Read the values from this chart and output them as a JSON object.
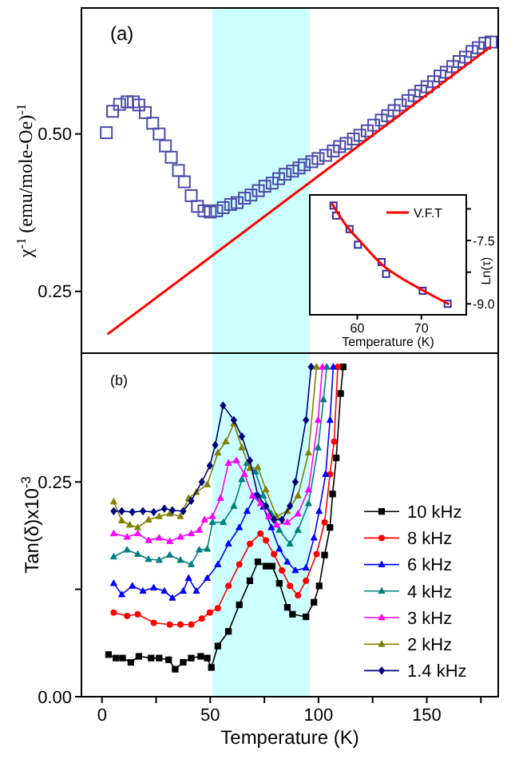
{
  "chart_data": [
    {
      "type": "scatter",
      "ylabel": "χ$^{-1}$ (emu/mole-Oe)$^{-1}$",
      "annotations": [
        "(a)"
      ],
      "xlim": [
        -9.5,
        183
      ],
      "ylim": [
        0.152,
        0.7
      ],
      "tick_labels": "y",
      "grid": false,
      "legend": false,
      "xticks": [
        {
          "value": 0,
          "label": null
        },
        {
          "value": 25,
          "label": null
        },
        {
          "value": 50,
          "label": null
        },
        {
          "value": 75,
          "label": null
        },
        {
          "value": 100,
          "label": null
        },
        {
          "value": 125,
          "label": null
        },
        {
          "value": 150,
          "label": null
        },
        {
          "value": 175,
          "label": null
        }
      ],
      "yticks": [
        0.25,
        {
          "value": 0.5,
          "label": "0.50"
        }
      ],
      "bands": [
        {
          "axis": "x",
          "from": 51,
          "to": 96,
          "color": "#ccffff"
        }
      ],
      "series": [
        {
          "marker": "square",
          "color": "#4b4ba8",
          "x": [
            2,
            4.9,
            8.1,
            11.6,
            14.5,
            17,
            20,
            23.4,
            26.4,
            29.3,
            32,
            35.3,
            38,
            41.2,
            44.1,
            47.1,
            50,
            53,
            56,
            59.4,
            62.4,
            65.8,
            68.8,
            72.2,
            75.2,
            78.6,
            81.6,
            84.6,
            88,
            91,
            93.4,
            96.9,
            99.8,
            103.3,
            106.8,
            109.7,
            112.7,
            116.1,
            119.1,
            122.5,
            125.5,
            129,
            131.9,
            134.9,
            137.8,
            141.3,
            144.2,
            147.2,
            150.1,
            153.1,
            156.1,
            159,
            162,
            164.9,
            167.9,
            170.9,
            173.8,
            176.8,
            179.7
          ],
          "values": [
            0.502,
            0.536,
            0.547,
            0.551,
            0.551,
            0.546,
            0.534,
            0.517,
            0.5,
            0.481,
            0.463,
            0.442,
            0.424,
            0.402,
            0.385,
            0.378,
            0.376,
            0.378,
            0.383,
            0.388,
            0.391,
            0.398,
            0.403,
            0.41,
            0.417,
            0.422,
            0.429,
            0.436,
            0.441,
            0.446,
            0.451,
            0.456,
            0.461,
            0.466,
            0.473,
            0.48,
            0.485,
            0.492,
            0.498,
            0.505,
            0.514,
            0.522,
            0.529,
            0.537,
            0.546,
            0.553,
            0.561,
            0.568,
            0.575,
            0.583,
            0.592,
            0.598,
            0.607,
            0.615,
            0.622,
            0.631,
            0.637,
            0.644,
            0.646
          ]
        },
        {
          "type": "line",
          "marker": "none",
          "color": "#ff0000",
          "x": [
            2.5,
            179.7
          ],
          "values": [
            0.182,
            0.639
          ]
        }
      ]
    },
    {
      "type": "scatter",
      "xlabel": "Temperature (K)",
      "y2label": "Ln(τ)",
      "xlim": [
        52.6,
        77
      ],
      "y2lim": [
        -9.26,
        -6.42
      ],
      "xticks": [
        60,
        70
      ],
      "y2ticks": [
        {
          "value": -6.75,
          "label": null
        },
        -7.5,
        {
          "value": -8.25,
          "label": null
        },
        {
          "value": -9,
          "label": "-9.0"
        }
      ],
      "grid": false,
      "legend": "top right",
      "series": [
        {
          "marker": "square",
          "color": "#3030a0",
          "axis": "y2",
          "x": [
            56.3,
            56.7,
            58.8,
            60.1,
            63.8,
            64.5,
            70.2,
            74.1
          ],
          "values": [
            -6.67,
            -6.91,
            -7.23,
            -7.6,
            -8.01,
            -8.29,
            -8.69,
            -9.0
          ]
        },
        {
          "type": "line",
          "marker": "none",
          "name": "V.F.T",
          "color": "#ff0000",
          "axis": "y2",
          "x": [
            56,
            58.2,
            60.7,
            64,
            67.3,
            70.6,
            74.3
          ],
          "values": [
            -6.61,
            -7.13,
            -7.56,
            -8.09,
            -8.43,
            -8.71,
            -9.01
          ]
        }
      ]
    },
    {
      "type": "line",
      "xlabel": "Temperature (K)",
      "ylabel": "Tan(δ)x10$^{-3}$",
      "annotations": [
        "(b)"
      ],
      "xlim": [
        -9.5,
        183
      ],
      "ylim": [
        0,
        0.4
      ],
      "grid": false,
      "legend": "bottom right",
      "xticks": [
        0,
        {
          "value": 25,
          "label": null
        },
        50,
        {
          "value": 75,
          "label": null
        },
        100,
        {
          "value": 125,
          "label": null
        },
        150,
        {
          "value": 175,
          "label": null
        }
      ],
      "yticks": [
        {
          "value": 0,
          "label": "0.00"
        },
        {
          "value": 0.125,
          "label": null
        },
        0.25
      ],
      "bands": [
        {
          "axis": "x",
          "from": 51,
          "to": 96,
          "color": "#ccffff"
        }
      ],
      "series": [
        {
          "name": "10 kHz",
          "color": "#000000",
          "marker": "square",
          "x": [
            3,
            6.4,
            9.5,
            13.3,
            17,
            22.7,
            26.4,
            30.8,
            33.8,
            37.5,
            41.2,
            45.6,
            48.6,
            50.5,
            53.5,
            58.4,
            63.4,
            68.3,
            72,
            75.7,
            78.6,
            81.9,
            85.6,
            88,
            94.2,
            97.9,
            100.3,
            102.8,
            105.3,
            106.5,
            108.2,
            110.2,
            111.4
          ],
          "values": [
            0.049,
            0.045,
            0.045,
            0.04,
            0.047,
            0.045,
            0.045,
            0.043,
            0.032,
            0.04,
            0.045,
            0.047,
            0.045,
            0.034,
            0.059,
            0.076,
            0.107,
            0.135,
            0.157,
            0.152,
            0.152,
            0.132,
            0.104,
            0.096,
            0.093,
            0.11,
            0.129,
            0.165,
            0.197,
            0.236,
            0.278,
            0.353,
            0.384
          ]
        },
        {
          "name": "8 kHz",
          "color": "#ff0000",
          "marker": "circle",
          "x": [
            5.4,
            11.6,
            16.5,
            23.9,
            31.3,
            36.2,
            41.2,
            46.1,
            49.8,
            53.5,
            58.4,
            63.4,
            68.3,
            73.2,
            75.7,
            79.4,
            83.1,
            86.8,
            90.5,
            94.2,
            99.1,
            102.8,
            105.3,
            107.2,
            108.9
          ],
          "values": [
            0.098,
            0.094,
            0.096,
            0.086,
            0.084,
            0.084,
            0.084,
            0.091,
            0.098,
            0.103,
            0.129,
            0.154,
            0.178,
            0.19,
            0.182,
            0.166,
            0.147,
            0.129,
            0.118,
            0.135,
            0.166,
            0.203,
            0.259,
            0.297,
            0.384
          ]
        },
        {
          "name": "6 kHz",
          "color": "#0000ff",
          "marker": "triangle",
          "x": [
            5.4,
            9.1,
            14,
            18.9,
            23.9,
            28.8,
            32.5,
            37.5,
            40,
            43.6,
            48.6,
            53.5,
            58.4,
            63.4,
            67,
            70.8,
            74.5,
            78.2,
            81.9,
            85.6,
            89.3,
            94.2,
            97.9,
            100.3,
            103.3,
            105.3,
            106.8
          ],
          "values": [
            0.132,
            0.119,
            0.129,
            0.123,
            0.127,
            0.123,
            0.115,
            0.123,
            0.138,
            0.123,
            0.138,
            0.154,
            0.178,
            0.197,
            0.216,
            0.234,
            0.221,
            0.197,
            0.172,
            0.157,
            0.147,
            0.15,
            0.185,
            0.216,
            0.259,
            0.322,
            0.384
          ]
        },
        {
          "name": "4 kHz",
          "color": "#008080",
          "marker": "triangle",
          "x": [
            5.4,
            11.6,
            16.5,
            21.5,
            26.4,
            31.3,
            36.2,
            41.2,
            44.9,
            48.6,
            51,
            56,
            60.9,
            64.6,
            67,
            70.8,
            74.5,
            78.2,
            81.9,
            86.8,
            90.5,
            95.4,
            99.8,
            102.3,
            103.8
          ],
          "values": [
            0.163,
            0.171,
            0.166,
            0.16,
            0.159,
            0.165,
            0.159,
            0.154,
            0.171,
            0.172,
            0.203,
            0.203,
            0.222,
            0.253,
            0.272,
            0.262,
            0.234,
            0.213,
            0.194,
            0.178,
            0.194,
            0.225,
            0.29,
            0.346,
            0.384
          ]
        },
        {
          "name": "3 kHz",
          "color": "#ff00ff",
          "marker": "triangle",
          "x": [
            5.4,
            11.6,
            16.5,
            21.5,
            26.4,
            31.3,
            36.2,
            41.2,
            44.9,
            47.3,
            51,
            54.7,
            58.4,
            62.1,
            65.8,
            69.5,
            73.2,
            77,
            80.6,
            85.6,
            90.5,
            95.4,
            99.8,
            101.8
          ],
          "values": [
            0.19,
            0.186,
            0.19,
            0.182,
            0.185,
            0.181,
            0.186,
            0.19,
            0.194,
            0.206,
            0.21,
            0.231,
            0.272,
            0.275,
            0.259,
            0.234,
            0.225,
            0.21,
            0.2,
            0.203,
            0.213,
            0.241,
            0.322,
            0.384
          ]
        },
        {
          "name": "2 kHz",
          "color": "#808000",
          "marker": "triangle",
          "x": [
            5.4,
            9.1,
            12.8,
            16.5,
            21.5,
            26.4,
            31.3,
            36.2,
            40,
            43.6,
            48.6,
            53.5,
            57.2,
            60.9,
            64.6,
            68.3,
            72,
            75.7,
            80.6,
            85.6,
            90.5,
            95.4,
            99.1
          ],
          "values": [
            0.227,
            0.205,
            0.2,
            0.197,
            0.206,
            0.21,
            0.213,
            0.21,
            0.231,
            0.238,
            0.247,
            0.284,
            0.297,
            0.318,
            0.29,
            0.266,
            0.267,
            0.241,
            0.21,
            0.216,
            0.234,
            0.284,
            0.384
          ]
        },
        {
          "name": "1.4 kHz",
          "color": "#000080",
          "marker": "diamond",
          "x": [
            5.4,
            9.1,
            14,
            18.9,
            23.9,
            28.8,
            32.5,
            37.5,
            41.2,
            46.1,
            49.8,
            52.3,
            55.9,
            60.9,
            64.6,
            68.3,
            72,
            75.7,
            79.4,
            83.1,
            86.8,
            89.3,
            94.2,
            96.6
          ],
          "values": [
            0.216,
            0.216,
            0.215,
            0.216,
            0.215,
            0.219,
            0.217,
            0.216,
            0.228,
            0.25,
            0.269,
            0.293,
            0.339,
            0.322,
            0.303,
            0.275,
            0.234,
            0.222,
            0.206,
            0.206,
            0.222,
            0.25,
            0.322,
            0.384
          ]
        }
      ]
    }
  ]
}
